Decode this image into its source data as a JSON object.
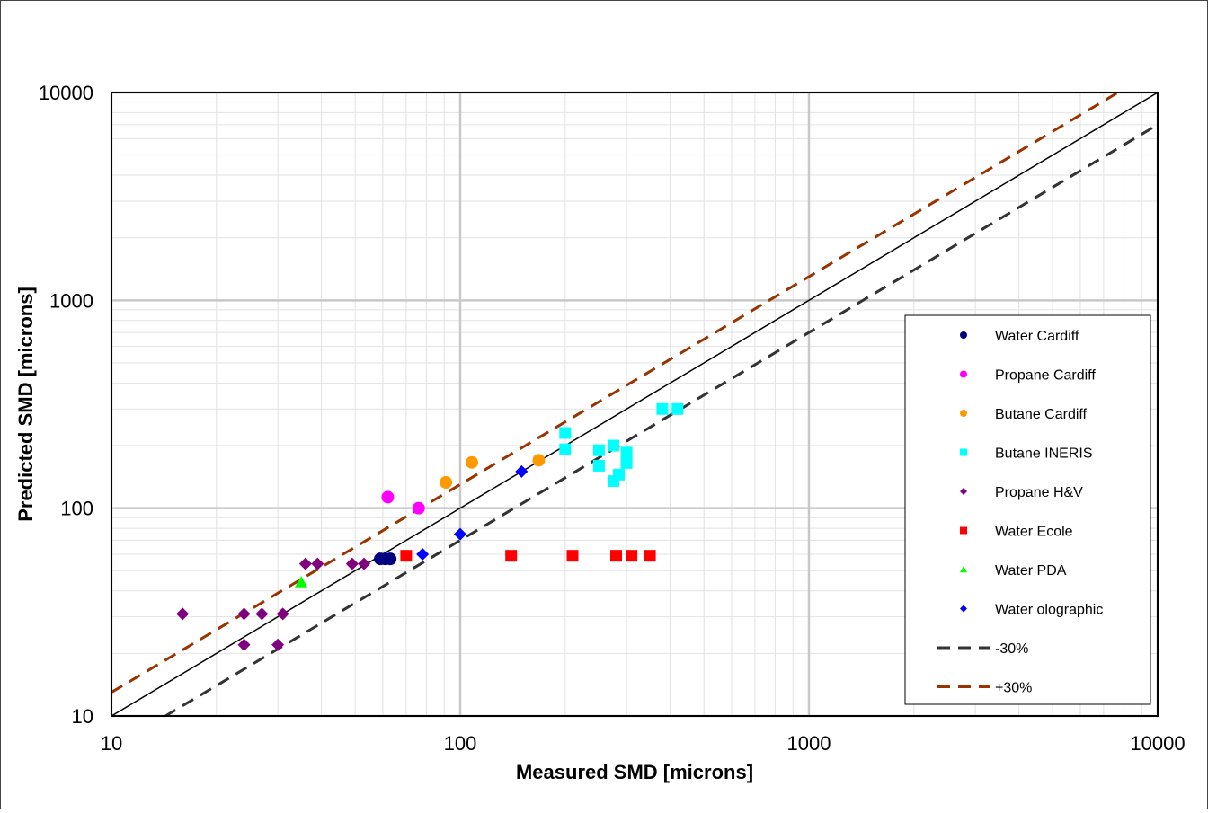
{
  "chart_data": {
    "type": "scatter",
    "xlabel": "Measured SMD [microns]",
    "ylabel": "Predicted SMD [microns]",
    "x_scale": "log",
    "y_scale": "log",
    "xlim": [
      10,
      10000
    ],
    "ylim": [
      10,
      10000
    ],
    "x_ticks": [
      10,
      100,
      1000,
      10000
    ],
    "y_ticks": [
      10,
      100,
      1000,
      10000
    ],
    "x_tick_labels": [
      "10",
      "100",
      "1000",
      "10000"
    ],
    "y_tick_labels": [
      "10",
      "100",
      "1000",
      "10000"
    ],
    "grid": true,
    "legend_position": "bottom-right",
    "series": [
      {
        "name": "Water Cardiff",
        "marker": "circle",
        "color": "#000080",
        "points": [
          [
            59,
            57
          ],
          [
            61,
            57
          ],
          [
            63,
            57
          ]
        ]
      },
      {
        "name": "Propane Cardiff",
        "marker": "circle",
        "color": "#FF00FF",
        "points": [
          [
            62,
            113
          ],
          [
            76,
            100
          ]
        ]
      },
      {
        "name": "Butane Cardiff",
        "marker": "circle",
        "color": "#FF9900",
        "points": [
          [
            91,
            133
          ],
          [
            108,
            166
          ],
          [
            168,
            170
          ]
        ]
      },
      {
        "name": "Butane INERIS",
        "marker": "square",
        "color": "#00FFFF",
        "points": [
          [
            200,
            230
          ],
          [
            200,
            192
          ],
          [
            250,
            190
          ],
          [
            250,
            160
          ],
          [
            275,
            200
          ],
          [
            275,
            135
          ],
          [
            285,
            145
          ],
          [
            300,
            185
          ],
          [
            300,
            165
          ],
          [
            380,
            300
          ],
          [
            420,
            300
          ]
        ]
      },
      {
        "name": "Propane H&V",
        "marker": "diamond",
        "color": "#800080",
        "points": [
          [
            16,
            31
          ],
          [
            24,
            31
          ],
          [
            24,
            22
          ],
          [
            27,
            31
          ],
          [
            30,
            22
          ],
          [
            31,
            31
          ],
          [
            36,
            54
          ],
          [
            39,
            54
          ],
          [
            49,
            54
          ],
          [
            53,
            54
          ]
        ]
      },
      {
        "name": "Water Ecole",
        "marker": "square",
        "color": "#FF0000",
        "points": [
          [
            70,
            59
          ],
          [
            140,
            59
          ],
          [
            210,
            59
          ],
          [
            280,
            59
          ],
          [
            310,
            59
          ],
          [
            350,
            59
          ]
        ]
      },
      {
        "name": "Water PDA",
        "marker": "triangle",
        "color": "#00FF00",
        "points": [
          [
            35,
            44
          ]
        ]
      },
      {
        "name": "Water olographic",
        "marker": "diamond",
        "color": "#0000FF",
        "points": [
          [
            78,
            60
          ],
          [
            100,
            75
          ],
          [
            150,
            150
          ]
        ]
      }
    ],
    "reference_lines": [
      {
        "label": "",
        "style": "solid",
        "color": "#000000",
        "factor": 1.0
      },
      {
        "name": "-30%",
        "style": "dashed",
        "color": "#333333",
        "factor": 0.7
      },
      {
        "name": "+30%",
        "style": "dashed",
        "color": "#993300",
        "factor": 1.3
      }
    ]
  }
}
